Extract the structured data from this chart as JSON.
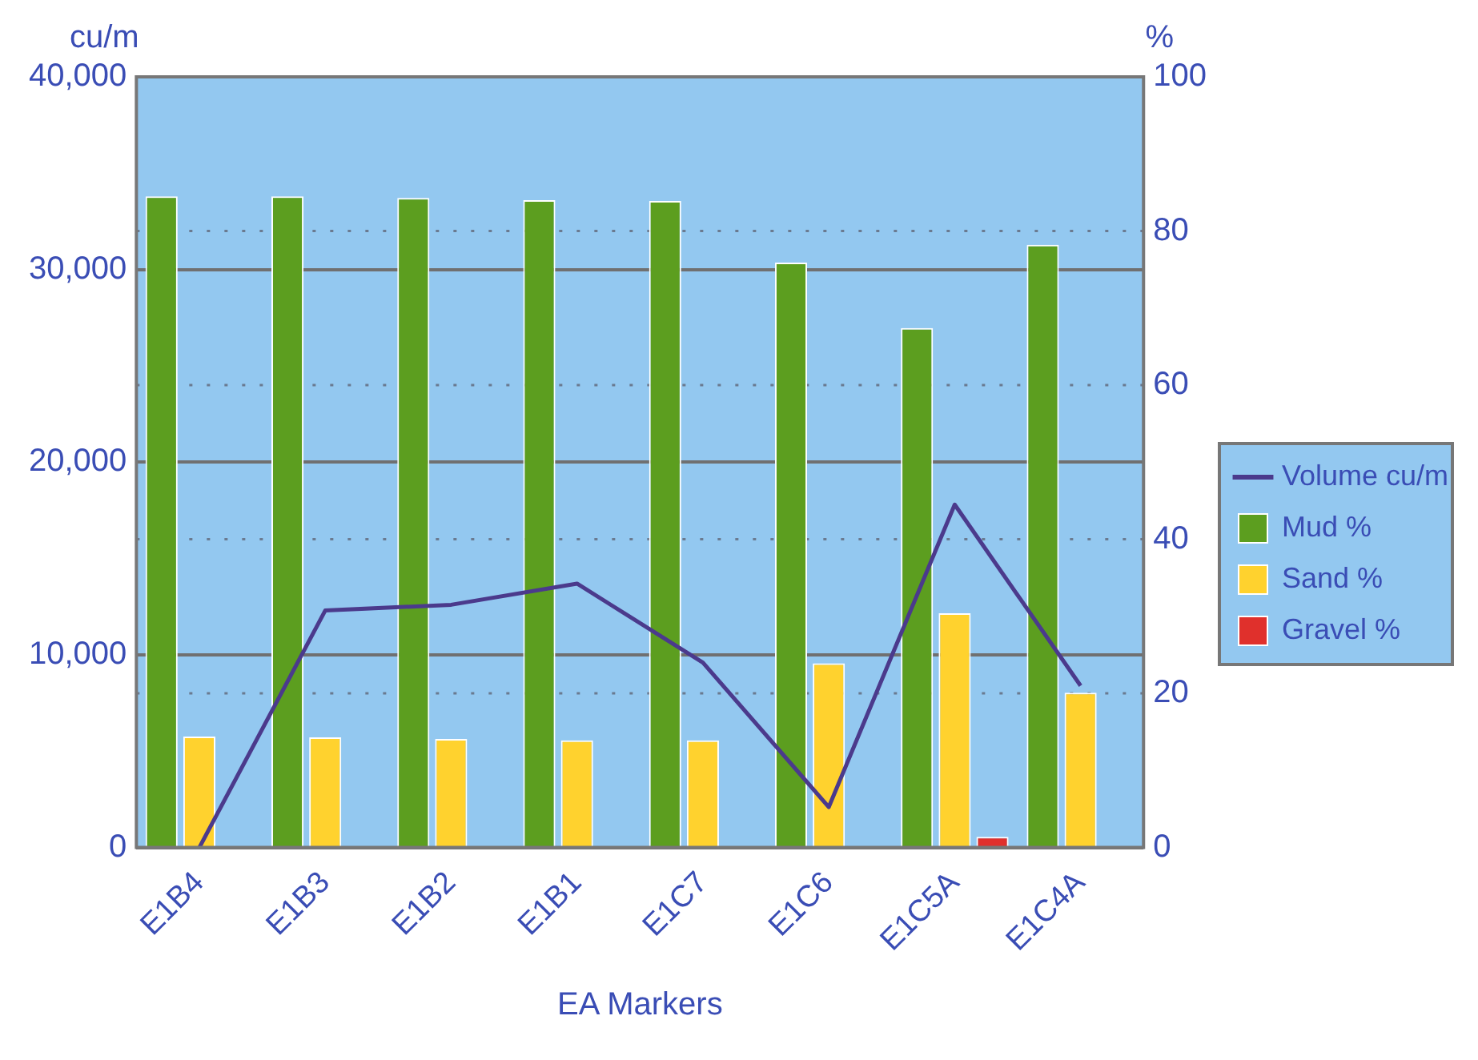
{
  "chart_data": {
    "type": "bar",
    "xlabel": "EA Markers",
    "ylabel": "cu/m",
    "y2label": "%",
    "categories": [
      "E1B4",
      "E1B3",
      "E1B2",
      "E1B1",
      "E1C7",
      "E1C6",
      "E1C5A",
      "E1C4A"
    ],
    "series": [
      {
        "name": "Volume cu/m",
        "type": "line",
        "color": "#4b3a8c",
        "values": [
          0,
          12300,
          12600,
          13700,
          9600,
          2100,
          17800,
          8400
        ]
      },
      {
        "name": "Mud %",
        "axis": "y2",
        "color": "#5c9e1f",
        "values": [
          84.5,
          84.5,
          84.3,
          84.0,
          83.9,
          75.9,
          67.4,
          78.2
        ]
      },
      {
        "name": "Sand %",
        "axis": "y2",
        "color": "#ffd22e",
        "values": [
          14.4,
          14.3,
          14.1,
          13.9,
          13.9,
          23.9,
          30.4,
          20.1
        ]
      },
      {
        "name": "Gravel %",
        "axis": "y2",
        "color": "#e0302c",
        "values": [
          0,
          0,
          0,
          0,
          0,
          0,
          1.4,
          0
        ]
      }
    ],
    "ylim": [
      0,
      40000
    ],
    "yticks": [
      {
        "value": 0,
        "label": "0"
      },
      {
        "value": 10000,
        "label": "10,000"
      },
      {
        "value": 20000,
        "label": "20,000"
      },
      {
        "value": 30000,
        "label": "30,000"
      },
      {
        "value": 40000,
        "label": "40,000"
      }
    ],
    "y2lim": [
      0,
      100
    ],
    "y2ticks": [
      0,
      20,
      40,
      60,
      80,
      100
    ],
    "grid": true,
    "legend": "right"
  }
}
